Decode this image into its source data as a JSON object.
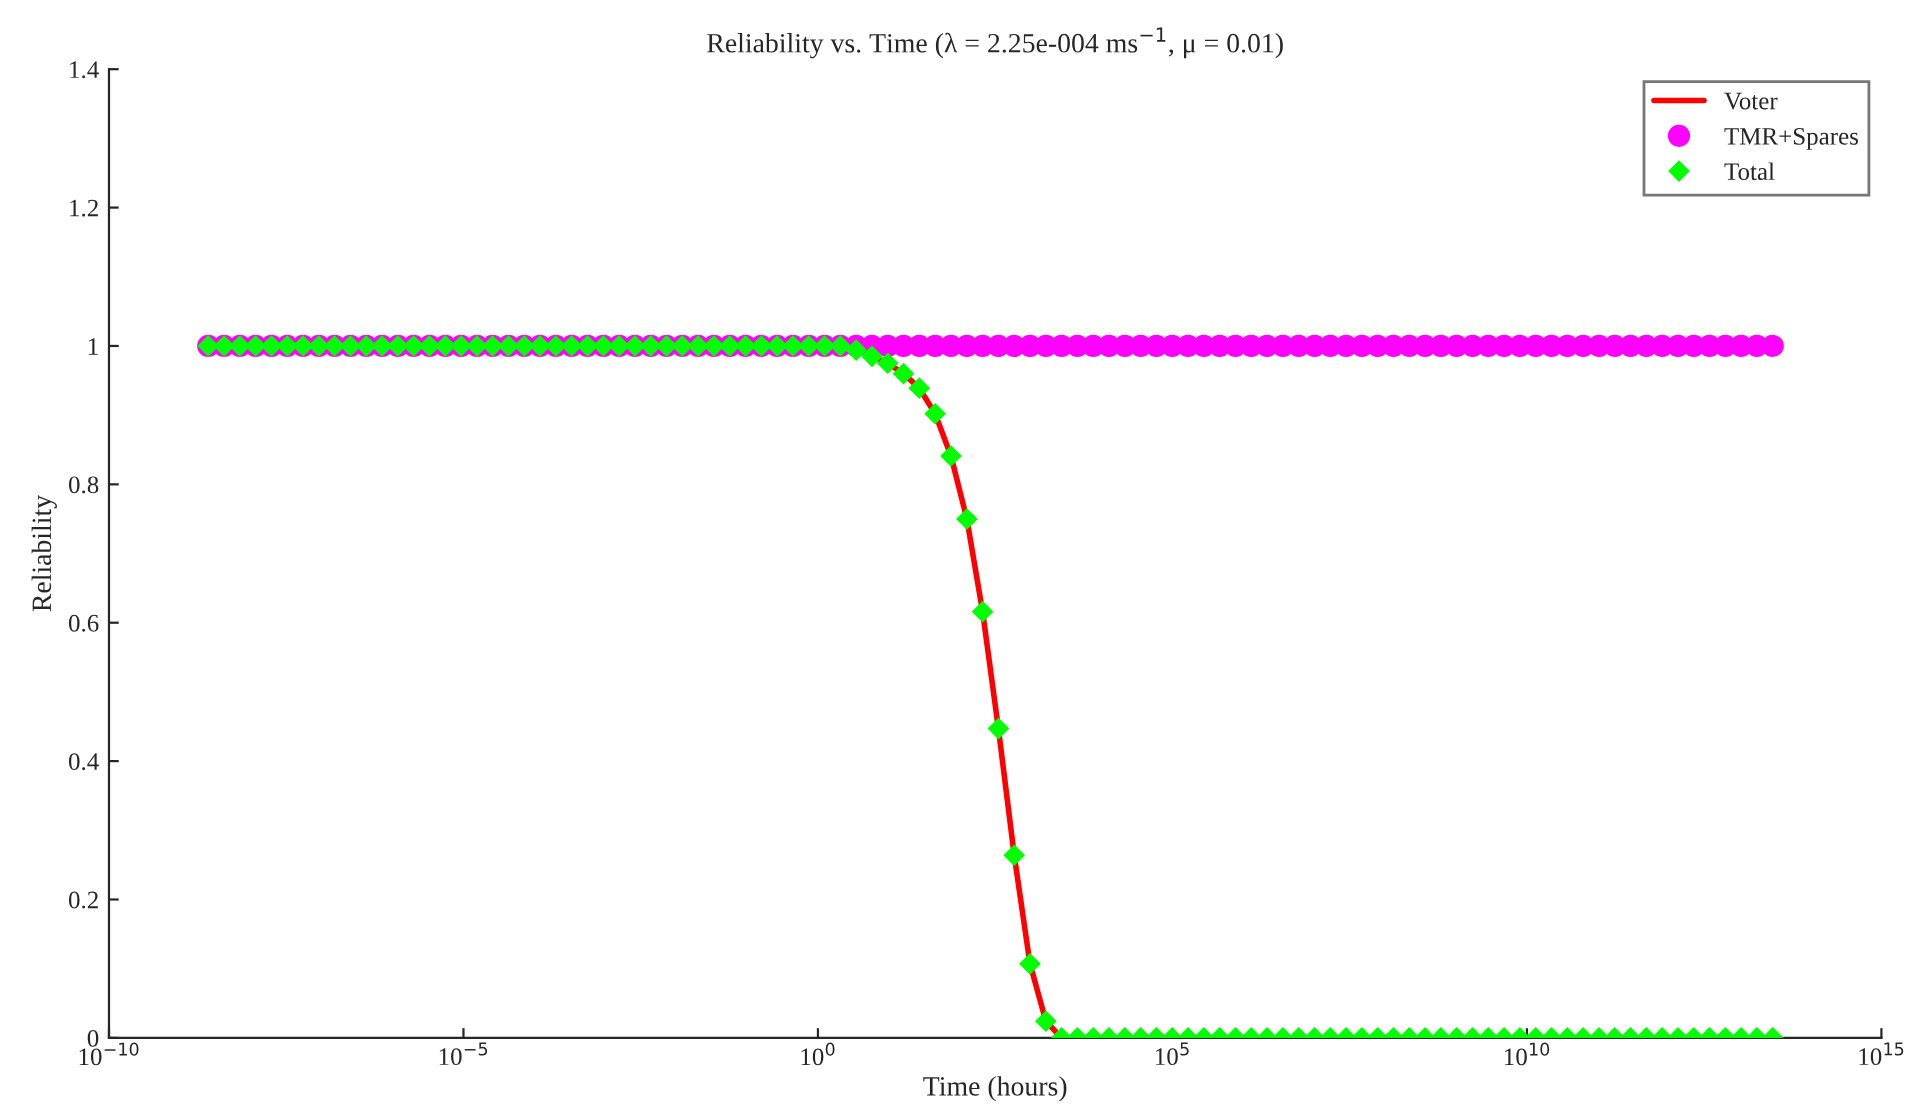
{
  "chart_data": {
    "type": "line",
    "title": "Reliability vs. Time (λ = 2.25e-004 ms$^{−1}$, μ = 0.01)",
    "xlabel": "Time (hours)",
    "ylabel": "Reliability",
    "log": "x",
    "x": [
      2.51e-09,
      4.2e-09,
      7.01e-09,
      1.17e-08,
      1.96e-08,
      3.27e-08,
      5.46e-08,
      9.13e-08,
      1.52e-07,
      2.55e-07,
      4.26e-07,
      7.11e-07,
      1.19e-06,
      1.98e-06,
      3.32e-06,
      5.54e-06,
      9.26e-06,
      1.55e-05,
      2.58e-05,
      4.32e-05,
      7.21e-05,
      0.00012,
      0.000201,
      0.000336,
      0.000562,
      0.000939,
      0.00157,
      0.00262,
      0.00438,
      0.00731,
      0.0122,
      0.0204,
      0.0341,
      0.057,
      0.0952,
      0.159,
      0.266,
      0.444,
      0.742,
      1.24,
      2.07,
      3.46,
      5.78,
      9.65,
      16.1,
      26.9,
      45.0,
      75.2,
      126,
      210,
      351,
      586,
      979,
      1640,
      2730,
      4560,
      7630,
      12700,
      21300,
      35600,
      59400,
      99300,
      166000.0,
      277000.0,
      463000.0,
      774000.0,
      1290000.0,
      2160000.0,
      3610000.0,
      6030000.0,
      10100000.0,
      16800000.0,
      28100000.0,
      47000000.0,
      78500000.0,
      131000000.0,
      219000000.0,
      366000000.0,
      611000000.0,
      1020000000.0,
      1710000000.0,
      2850000000.0,
      4760000000.0,
      7960000000.0,
      13300000000.0,
      22200000000.0,
      37100000000.0,
      62000000000.0,
      104000000000.0,
      173000000000.0,
      289000000000.0,
      483000000000.0,
      807000000000.0,
      1350000000000.0,
      2250000000000.0,
      3760000000000.0,
      6290000000000.0,
      10500000000000.0,
      17500000000000.0,
      29300000000000.0
    ],
    "series": [
      {
        "name": "Voter",
        "color": "#ff0000",
        "marker": "none",
        "line_style": "solid",
        "values": [
          null,
          null,
          null,
          null,
          null,
          null,
          null,
          null,
          null,
          null,
          null,
          null,
          null,
          null,
          null,
          null,
          null,
          null,
          null,
          null,
          null,
          null,
          null,
          null,
          null,
          null,
          null,
          null,
          null,
          null,
          null,
          null,
          null,
          null,
          null,
          null,
          null,
          null,
          null,
          null,
          null,
          null,
          0.985,
          0.975,
          0.96,
          0.939,
          0.902,
          0.841,
          0.75,
          0.616,
          0.447,
          0.264,
          0.107,
          0.024,
          0,
          null,
          null,
          null,
          null,
          null,
          null,
          null,
          null,
          null,
          null,
          null,
          null,
          null,
          null,
          null,
          null,
          null,
          null,
          null,
          null,
          null,
          null,
          null,
          null,
          null,
          null,
          null,
          null,
          null,
          null,
          null,
          null,
          null,
          null,
          null,
          null,
          null,
          null,
          null,
          null,
          null,
          null,
          null,
          null,
          null
        ]
      },
      {
        "name": "TMR+Spares",
        "type": "scatter",
        "color": "#ff00ff",
        "marker": "circle",
        "values": [
          1,
          1,
          1,
          1,
          1,
          1,
          1,
          1,
          1,
          1,
          1,
          1,
          1,
          1,
          1,
          1,
          1,
          1,
          1,
          1,
          1,
          1,
          1,
          1,
          1,
          1,
          1,
          1,
          1,
          1,
          1,
          1,
          1,
          1,
          1,
          1,
          1,
          1,
          1,
          1,
          1,
          1,
          1,
          1,
          1,
          1,
          1,
          1,
          1,
          1,
          1,
          1,
          1,
          1,
          1,
          1,
          1,
          1,
          1,
          1,
          1,
          1,
          1,
          1,
          1,
          1,
          1,
          1,
          1,
          1,
          1,
          1,
          1,
          1,
          1,
          1,
          1,
          1,
          1,
          1,
          1,
          1,
          1,
          1,
          1,
          1,
          1,
          1,
          1,
          1,
          1,
          1,
          1,
          1,
          1,
          1,
          1,
          1,
          1,
          1
        ]
      },
      {
        "name": "Total",
        "type": "scatter",
        "color": "#00ff00",
        "marker": "diamond",
        "values": [
          1,
          1,
          1,
          1,
          1,
          1,
          1,
          1,
          1,
          1,
          1,
          1,
          1,
          1,
          1,
          1,
          1,
          1,
          1,
          1,
          1,
          1,
          1,
          1,
          1,
          1,
          1,
          1,
          1,
          1,
          1,
          1,
          1,
          1,
          1,
          1,
          1,
          1,
          1,
          1,
          1,
          0.994,
          0.985,
          0.975,
          0.96,
          0.939,
          0.902,
          0.841,
          0.75,
          0.616,
          0.447,
          0.264,
          0.107,
          0.024,
          0,
          0,
          0,
          0,
          0,
          0,
          0,
          0,
          0,
          0,
          0,
          0,
          0,
          0,
          0,
          0,
          0,
          0,
          0,
          0,
          0,
          0,
          0,
          0,
          0,
          0,
          0,
          0,
          0,
          0,
          0,
          0,
          0,
          0,
          0,
          0,
          0,
          0,
          0,
          0,
          0,
          0,
          0,
          0,
          0,
          0
        ]
      }
    ],
    "xlim": [
      1e-10,
      1000000000000000.0
    ],
    "xticks": [
      {
        "value": 1e-10,
        "label": "10$^{−10}$"
      },
      {
        "value": 1e-05,
        "label": "10$^{−5}$"
      },
      {
        "value": 1,
        "label": "10$^{0}$"
      },
      {
        "value": 100000.0,
        "label": "10$^{5}$"
      },
      {
        "value": 10000000000.0,
        "label": "10$^{10}$"
      },
      {
        "value": 1000000000000000.0,
        "label": "10$^{15}$"
      }
    ],
    "ylim": [
      0,
      1.4
    ],
    "yticks": [
      0,
      0.2,
      0.4,
      0.6,
      0.8,
      1,
      1.2,
      1.4
    ],
    "grid": false,
    "legend": "top right"
  }
}
